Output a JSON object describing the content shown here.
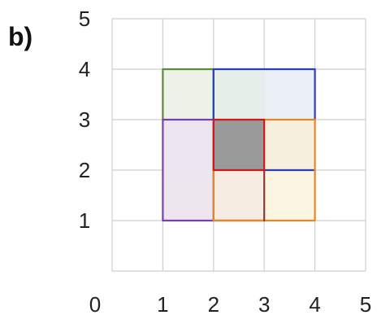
{
  "panel_label": "b)",
  "axes": {
    "x_min": 0,
    "x_max": 5,
    "y_min": 0,
    "y_max": 5,
    "x_ticks": [
      "0",
      "1",
      "2",
      "3",
      "4",
      "5"
    ],
    "y_ticks": [
      "1",
      "2",
      "3",
      "4",
      "5"
    ],
    "grid_color": "#cfcfcf"
  },
  "cells": [
    {
      "x0": 1,
      "y0": 3,
      "x1": 2,
      "y1": 4,
      "fill": "#edf2e6",
      "stroke": "#5f8a3a"
    },
    {
      "x0": 2,
      "y0": 3,
      "x1": 3,
      "y1": 4,
      "fill": "#e6eee9",
      "stroke": "#2a3fb5"
    },
    {
      "x0": 3,
      "y0": 3,
      "x1": 4,
      "y1": 4,
      "fill": "#eaf0f6",
      "stroke": "#2a3fb5"
    },
    {
      "x0": 1,
      "y0": 2,
      "x1": 2,
      "y1": 3,
      "fill": "#ece4ef",
      "stroke": "#7a3fb0"
    },
    {
      "x0": 2,
      "y0": 2,
      "x1": 3,
      "y1": 3,
      "fill": "#9a9a9a",
      "stroke": "#d01818"
    },
    {
      "x0": 3,
      "y0": 2,
      "x1": 4,
      "y1": 3,
      "fill": "#f7f0df",
      "stroke": "#e08a2a"
    },
    {
      "x0": 1,
      "y0": 1,
      "x1": 2,
      "y1": 2,
      "fill": "#eee6ef",
      "stroke": "#7a3fb0"
    },
    {
      "x0": 2,
      "y0": 1,
      "x1": 3,
      "y1": 2,
      "fill": "#f6ece1",
      "stroke": "#e08a2a"
    },
    {
      "x0": 3,
      "y0": 1,
      "x1": 4,
      "y1": 2,
      "fill": "#fbf5e1",
      "stroke": "#e08a2a"
    }
  ],
  "outlines": [
    {
      "points": [
        [
          1,
          3
        ],
        [
          1,
          4
        ],
        [
          2,
          4
        ],
        [
          2,
          3
        ]
      ],
      "stroke": "#5f8a3a"
    },
    {
      "points": [
        [
          2,
          3
        ],
        [
          2,
          4
        ],
        [
          4,
          4
        ],
        [
          4,
          3
        ]
      ],
      "stroke": "#2a3fb5"
    },
    {
      "points": [
        [
          3,
          2
        ],
        [
          4,
          2
        ]
      ],
      "stroke": "#2a3fb5"
    },
    {
      "points": [
        [
          1,
          3
        ],
        [
          2,
          3
        ],
        [
          2,
          1
        ],
        [
          1,
          1
        ],
        [
          1,
          3
        ]
      ],
      "stroke": "#7a3fb0"
    },
    {
      "points": [
        [
          2,
          1
        ],
        [
          3,
          1
        ]
      ],
      "stroke": "#7a3fb0"
    },
    {
      "points": [
        [
          2,
          2
        ],
        [
          2,
          1
        ],
        [
          3,
          1
        ]
      ],
      "stroke": "#e08a2a"
    },
    {
      "points": [
        [
          3,
          1
        ],
        [
          4,
          1
        ],
        [
          4,
          3
        ],
        [
          3,
          3
        ]
      ],
      "stroke": "#e08a2a"
    },
    {
      "points": [
        [
          3,
          1
        ],
        [
          3,
          2
        ]
      ],
      "stroke": "#8a3a3a"
    },
    {
      "points": [
        [
          2,
          2
        ],
        [
          3,
          2
        ],
        [
          3,
          3
        ],
        [
          2,
          3
        ],
        [
          2,
          2
        ]
      ],
      "stroke": "#d01818"
    }
  ]
}
